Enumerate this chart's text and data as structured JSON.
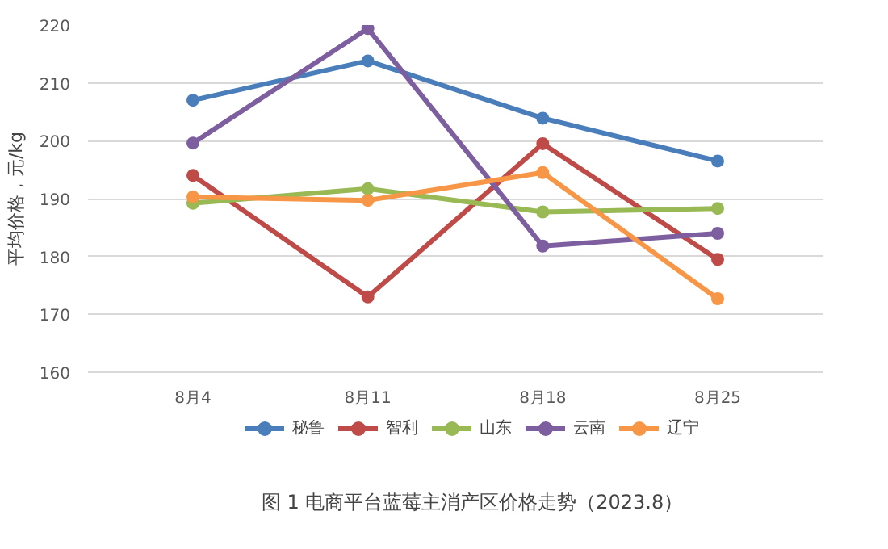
{
  "chart_data": {
    "type": "line",
    "title": "图 1 电商平台蓝莓主消产区价格走势（2023.8）",
    "ylabel": "平均价格，元/kg",
    "categories": [
      "8月4",
      "8月11",
      "8月18",
      "8月25"
    ],
    "series": [
      {
        "name": "秘鲁",
        "color": "#4a7ebb",
        "values": [
          207,
          213.8,
          203.9,
          196.5
        ]
      },
      {
        "name": "智利",
        "color": "#be4b48",
        "values": [
          194,
          173,
          199.5,
          179.5
        ]
      },
      {
        "name": "山东",
        "color": "#98b954",
        "values": [
          189.2,
          191.7,
          187.7,
          188.3
        ]
      },
      {
        "name": "云南",
        "color": "#7d5fa0",
        "values": [
          199.6,
          219.4,
          181.8,
          184
        ]
      },
      {
        "name": "辽宁",
        "color": "#f79646",
        "values": [
          190.3,
          189.7,
          194.5,
          172.7
        ]
      }
    ],
    "ylim": [
      160,
      220
    ],
    "yticks": [
      160,
      170,
      180,
      190,
      200,
      210,
      220
    ],
    "grid": "y",
    "legend": "bottom",
    "marker": "circle",
    "line_style": "solid"
  }
}
